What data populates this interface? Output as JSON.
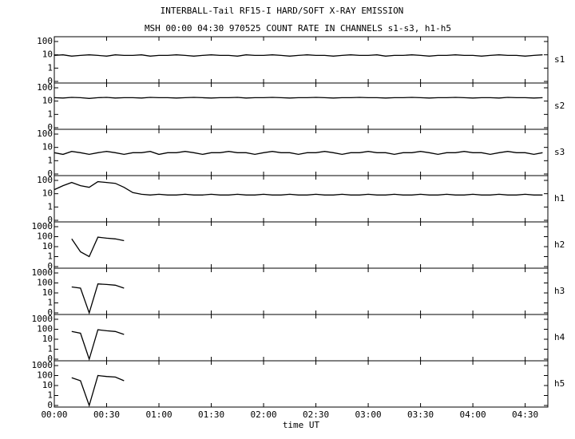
{
  "chart_data": {
    "type": "line",
    "title": "INTERBALL-Tail RF15-I HARD/SOFT X-RAY EMISSION",
    "subtitle": "MSH 00:00 04:30 970525  COUNT RATE IN CHANNELS s1-s3, h1-h5",
    "xlabel": "time UT",
    "color": "#000000",
    "yscale": "log",
    "grid": false,
    "xlim": [
      0,
      283
    ],
    "xticks": [
      {
        "value": 0,
        "label": "00:00"
      },
      {
        "value": 30,
        "label": "00:30"
      },
      {
        "value": 60,
        "label": "01:00"
      },
      {
        "value": 90,
        "label": "01:30"
      },
      {
        "value": 120,
        "label": "02:00"
      },
      {
        "value": 150,
        "label": "02:30"
      },
      {
        "value": 180,
        "label": "03:00"
      },
      {
        "value": 210,
        "label": "03:30"
      },
      {
        "value": 240,
        "label": "04:00"
      },
      {
        "value": 270,
        "label": "04:30"
      }
    ],
    "x": [
      0,
      5,
      10,
      15,
      20,
      25,
      30,
      35,
      40,
      45,
      50,
      55,
      60,
      65,
      70,
      75,
      80,
      85,
      90,
      95,
      100,
      105,
      110,
      115,
      120,
      125,
      130,
      135,
      140,
      145,
      150,
      155,
      160,
      165,
      170,
      175,
      180,
      185,
      190,
      195,
      200,
      205,
      210,
      215,
      220,
      225,
      230,
      235,
      240,
      245,
      250,
      255,
      260,
      265,
      270,
      275,
      280
    ],
    "series": [
      {
        "name": "s1",
        "ylim": [
          0,
          100
        ],
        "yticks": [
          0,
          1,
          10,
          100
        ],
        "values": [
          9,
          10,
          8,
          9,
          10,
          9,
          8,
          10,
          9,
          9,
          10,
          8,
          9,
          9,
          10,
          9,
          8,
          9,
          10,
          9,
          9,
          8,
          10,
          9,
          9,
          10,
          9,
          8,
          9,
          10,
          9,
          9,
          8,
          9,
          10,
          9,
          9,
          10,
          8,
          9,
          9,
          10,
          9,
          8,
          9,
          9,
          10,
          9,
          9,
          8,
          9,
          10,
          9,
          9,
          8,
          9,
          10
        ]
      },
      {
        "name": "s2",
        "ylim": [
          0,
          100
        ],
        "yticks": [
          0,
          1,
          10,
          100
        ],
        "values": [
          18,
          17,
          19,
          18,
          16,
          18,
          19,
          17,
          18,
          18,
          17,
          19,
          18,
          18,
          17,
          18,
          19,
          18,
          17,
          18,
          18,
          19,
          17,
          18,
          18,
          19,
          18,
          17,
          18,
          18,
          19,
          18,
          17,
          18,
          18,
          19,
          18,
          18,
          17,
          18,
          18,
          19,
          18,
          17,
          18,
          18,
          19,
          18,
          17,
          18,
          18,
          17,
          19,
          18,
          18,
          17,
          18
        ]
      },
      {
        "name": "s3",
        "ylim": [
          0,
          100
        ],
        "yticks": [
          0,
          1,
          10,
          100
        ],
        "values": [
          4,
          3,
          5,
          4,
          3,
          4,
          5,
          4,
          3,
          4,
          4,
          5,
          3,
          4,
          4,
          5,
          4,
          3,
          4,
          4,
          5,
          4,
          4,
          3,
          4,
          5,
          4,
          4,
          3,
          4,
          4,
          5,
          4,
          3,
          4,
          4,
          5,
          4,
          4,
          3,
          4,
          4,
          5,
          4,
          3,
          4,
          4,
          5,
          4,
          4,
          3,
          4,
          5,
          4,
          4,
          3,
          4
        ]
      },
      {
        "name": "h1",
        "ylim": [
          0,
          100
        ],
        "yticks": [
          0,
          1,
          10,
          100
        ],
        "values": [
          20,
          40,
          70,
          40,
          30,
          80,
          70,
          60,
          30,
          12,
          9,
          8,
          9,
          8,
          8,
          9,
          8,
          8,
          9,
          8,
          8,
          9,
          8,
          8,
          9,
          8,
          8,
          9,
          8,
          8,
          9,
          8,
          8,
          9,
          8,
          8,
          9,
          8,
          8,
          9,
          8,
          8,
          9,
          8,
          8,
          9,
          8,
          8,
          9,
          8,
          8,
          9,
          8,
          8,
          9,
          8,
          8
        ]
      },
      {
        "name": "h2",
        "ylim": [
          0,
          1000
        ],
        "yticks": [
          0,
          1,
          10,
          100,
          1000
        ],
        "values": [
          null,
          null,
          60,
          3,
          1,
          90,
          70,
          60,
          40,
          null,
          null,
          null,
          null,
          null,
          null,
          null,
          null,
          null,
          null,
          null,
          null,
          null,
          null,
          null,
          null,
          null,
          null,
          null,
          null,
          null,
          null,
          null,
          null,
          null,
          null,
          null,
          null,
          null,
          null,
          null,
          null,
          null,
          null,
          null,
          null,
          null,
          null,
          null,
          null,
          null,
          null,
          null,
          null,
          null,
          null,
          null,
          null
        ]
      },
      {
        "name": "h3",
        "ylim": [
          0,
          1000
        ],
        "yticks": [
          0,
          1,
          10,
          100,
          1000
        ],
        "values": [
          null,
          null,
          40,
          30,
          0,
          80,
          70,
          60,
          30,
          null,
          null,
          null,
          null,
          null,
          null,
          null,
          null,
          null,
          null,
          null,
          null,
          null,
          null,
          null,
          null,
          null,
          null,
          null,
          null,
          null,
          null,
          null,
          null,
          null,
          null,
          null,
          null,
          null,
          null,
          null,
          null,
          null,
          null,
          null,
          null,
          null,
          null,
          null,
          null,
          null,
          null,
          null,
          null,
          null,
          null,
          null,
          null
        ]
      },
      {
        "name": "h4",
        "ylim": [
          0,
          1000
        ],
        "yticks": [
          0,
          1,
          10,
          100,
          1000
        ],
        "values": [
          null,
          null,
          60,
          40,
          0,
          90,
          70,
          60,
          30,
          null,
          null,
          null,
          null,
          null,
          null,
          null,
          null,
          null,
          null,
          null,
          null,
          null,
          null,
          null,
          null,
          null,
          null,
          null,
          null,
          null,
          null,
          null,
          null,
          null,
          null,
          null,
          null,
          null,
          null,
          null,
          null,
          null,
          null,
          null,
          null,
          null,
          null,
          null,
          null,
          null,
          null,
          null,
          null,
          null,
          null,
          null,
          null
        ]
      },
      {
        "name": "h5",
        "ylim": [
          0,
          1000
        ],
        "yticks": [
          0,
          1,
          10,
          100,
          1000
        ],
        "values": [
          null,
          null,
          60,
          30,
          0,
          100,
          80,
          70,
          30,
          null,
          null,
          null,
          null,
          null,
          null,
          null,
          null,
          null,
          null,
          null,
          null,
          null,
          null,
          null,
          null,
          null,
          null,
          null,
          null,
          null,
          null,
          null,
          null,
          null,
          null,
          null,
          null,
          null,
          null,
          null,
          null,
          null,
          null,
          null,
          null,
          null,
          null,
          null,
          null,
          null,
          null,
          null,
          null,
          null,
          null,
          null,
          null
        ]
      }
    ]
  }
}
